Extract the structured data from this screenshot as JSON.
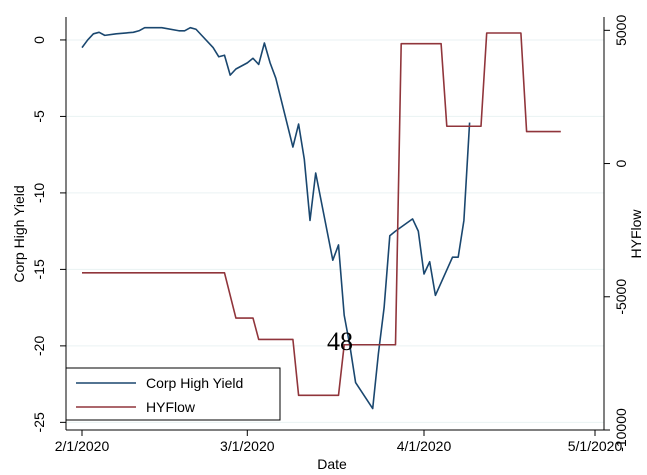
{
  "chart_data": {
    "type": "line",
    "xlabel": "Date",
    "ylabel_left": "Corp High Yield",
    "ylabel_right": "HYFlow",
    "x_range": [
      "2020-02-01",
      "2020-05-01"
    ],
    "x_ticks": [
      {
        "date": "2020-02-01",
        "label": "2/1/2020"
      },
      {
        "date": "2020-03-01",
        "label": "3/1/2020"
      },
      {
        "date": "2020-04-01",
        "label": "4/1/2020"
      },
      {
        "date": "2020-05-01",
        "label": "5/1/2020"
      }
    ],
    "y_left_range": [
      -25.5,
      1.5
    ],
    "y_left_ticks": [
      0,
      -5,
      -10,
      -15,
      -20,
      -25
    ],
    "y_right_range": [
      -10000,
      5500
    ],
    "y_right_ticks": [
      5000,
      0,
      -5000,
      -10000
    ],
    "grid": true,
    "legend_position": "bottom-left",
    "annotation": "48",
    "series": [
      {
        "name": "Corp High Yield",
        "axis": "left",
        "color": "#1a476f",
        "points": [
          [
            "2020-02-01",
            -0.5
          ],
          [
            "2020-02-02",
            0.0
          ],
          [
            "2020-02-03",
            0.4
          ],
          [
            "2020-02-04",
            0.5
          ],
          [
            "2020-02-05",
            0.3
          ],
          [
            "2020-02-07",
            0.4
          ],
          [
            "2020-02-10",
            0.5
          ],
          [
            "2020-02-11",
            0.6
          ],
          [
            "2020-02-12",
            0.8
          ],
          [
            "2020-02-13",
            0.8
          ],
          [
            "2020-02-15",
            0.8
          ],
          [
            "2020-02-18",
            0.6
          ],
          [
            "2020-02-19",
            0.6
          ],
          [
            "2020-02-20",
            0.8
          ],
          [
            "2020-02-21",
            0.7
          ],
          [
            "2020-02-22",
            0.3
          ],
          [
            "2020-02-24",
            -0.5
          ],
          [
            "2020-02-25",
            -1.1
          ],
          [
            "2020-02-26",
            -1.0
          ],
          [
            "2020-02-27",
            -2.3
          ],
          [
            "2020-02-28",
            -1.9
          ],
          [
            "2020-03-01",
            -1.5
          ],
          [
            "2020-03-02",
            -1.2
          ],
          [
            "2020-03-03",
            -1.6
          ],
          [
            "2020-03-04",
            -0.2
          ],
          [
            "2020-03-05",
            -1.5
          ],
          [
            "2020-03-06",
            -2.5
          ],
          [
            "2020-03-09",
            -7.0
          ],
          [
            "2020-03-10",
            -5.5
          ],
          [
            "2020-03-11",
            -7.8
          ],
          [
            "2020-03-12",
            -11.8
          ],
          [
            "2020-03-13",
            -8.7
          ],
          [
            "2020-03-16",
            -14.4
          ],
          [
            "2020-03-17",
            -13.4
          ],
          [
            "2020-03-18",
            -18.0
          ],
          [
            "2020-03-19",
            -20.0
          ],
          [
            "2020-03-20",
            -22.4
          ],
          [
            "2020-03-23",
            -24.1
          ],
          [
            "2020-03-24",
            -20.5
          ],
          [
            "2020-03-25",
            -17.5
          ],
          [
            "2020-03-26",
            -12.8
          ],
          [
            "2020-03-27",
            -12.5
          ],
          [
            "2020-03-30",
            -11.7
          ],
          [
            "2020-03-31",
            -12.5
          ],
          [
            "2020-04-01",
            -15.3
          ],
          [
            "2020-04-02",
            -14.5
          ],
          [
            "2020-04-03",
            -16.7
          ],
          [
            "2020-04-06",
            -14.2
          ],
          [
            "2020-04-07",
            -14.2
          ],
          [
            "2020-04-08",
            -11.8
          ],
          [
            "2020-04-09",
            -5.4
          ]
        ]
      },
      {
        "name": "HYFlow",
        "axis": "right",
        "color": "#90353b",
        "points": [
          [
            "2020-02-01",
            -4100
          ],
          [
            "2020-02-26",
            -4100
          ],
          [
            "2020-02-28",
            -5800
          ],
          [
            "2020-03-02",
            -5800
          ],
          [
            "2020-03-03",
            -6600
          ],
          [
            "2020-03-09",
            -6600
          ],
          [
            "2020-03-10",
            -8700
          ],
          [
            "2020-03-17",
            -8700
          ],
          [
            "2020-03-18",
            -6800
          ],
          [
            "2020-03-27",
            -6800
          ],
          [
            "2020-03-28",
            4500
          ],
          [
            "2020-04-04",
            4500
          ],
          [
            "2020-04-05",
            1400
          ],
          [
            "2020-04-11",
            1400
          ],
          [
            "2020-04-12",
            4900
          ],
          [
            "2020-04-18",
            4900
          ],
          [
            "2020-04-19",
            1200
          ],
          [
            "2020-04-25",
            1200
          ]
        ]
      }
    ]
  }
}
